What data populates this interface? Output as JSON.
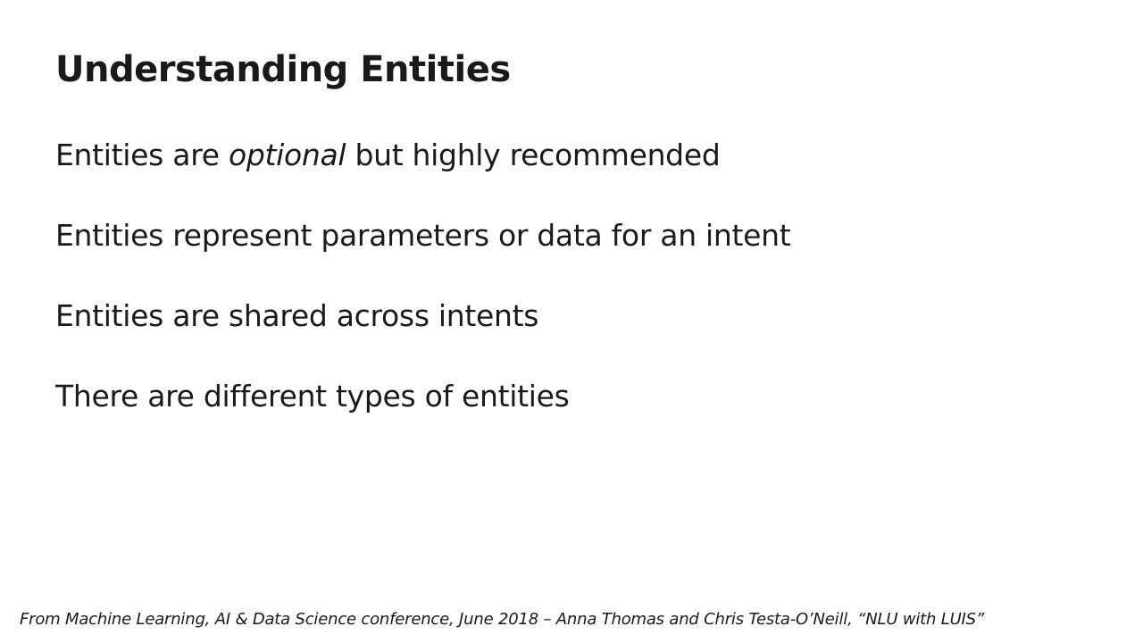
{
  "slide": {
    "title": "Understanding Entities",
    "bullets": [
      {
        "prefix": "Entities are ",
        "emphasis": "optional",
        "suffix": " but highly recommended"
      },
      {
        "text": "Entities represent parameters or data for an intent"
      },
      {
        "text": "Entities are shared across intents"
      },
      {
        "text": "There are different types of entities"
      }
    ],
    "footer": "From Machine Learning, AI & Data Science conference, June 2018 – Anna Thomas and Chris Testa-O’Neill,  “NLU with LUIS”"
  }
}
